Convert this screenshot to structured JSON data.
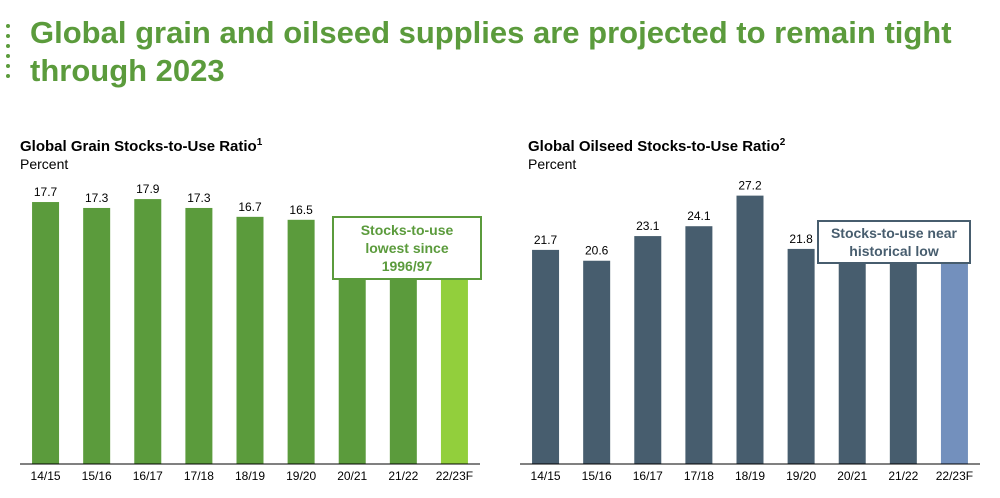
{
  "headline": "Global grain and oilseed supplies are projected to remain tight through 2023",
  "colors": {
    "headline": "#5b9b3c",
    "grain_bar": "#5b9b3c",
    "grain_forecast": "#92cf3c",
    "oilseed_bar": "#475d6e",
    "oilseed_forecast": "#7390bd",
    "oilseed_callout_border": "#475d6e"
  },
  "charts": [
    {
      "title": "Global Grain Stocks-to-Use Ratio",
      "title_sup": "1",
      "unit": "Percent",
      "callout": "Stocks-to-use lowest since 1996/97"
    },
    {
      "title": "Global Oilseed Stocks-to-Use Ratio",
      "title_sup": "2",
      "unit": "Percent",
      "callout": "Stocks-to-use near historical low"
    }
  ],
  "chart_data": [
    {
      "type": "bar",
      "title": "Global Grain Stocks-to-Use Ratio",
      "ylabel": "Percent",
      "ylim": [
        0,
        20
      ],
      "categories": [
        "14/15",
        "15/16",
        "16/17",
        "17/18",
        "18/19",
        "19/20",
        "20/21",
        "21/22",
        "22/23F"
      ],
      "values": [
        17.7,
        17.3,
        17.9,
        17.3,
        16.7,
        16.5,
        15.3,
        14.9,
        13.9
      ],
      "forecast_index": 8
    },
    {
      "type": "bar",
      "title": "Global Oilseed Stocks-to-Use Ratio",
      "ylabel": "Percent",
      "ylim": [
        0,
        30
      ],
      "categories": [
        "14/15",
        "15/16",
        "16/17",
        "17/18",
        "18/19",
        "19/20",
        "20/21",
        "21/22",
        "22/23F"
      ],
      "values": [
        21.7,
        20.6,
        23.1,
        24.1,
        27.2,
        21.8,
        22.4,
        22.8,
        22.0
      ],
      "forecast_index": 8
    }
  ]
}
